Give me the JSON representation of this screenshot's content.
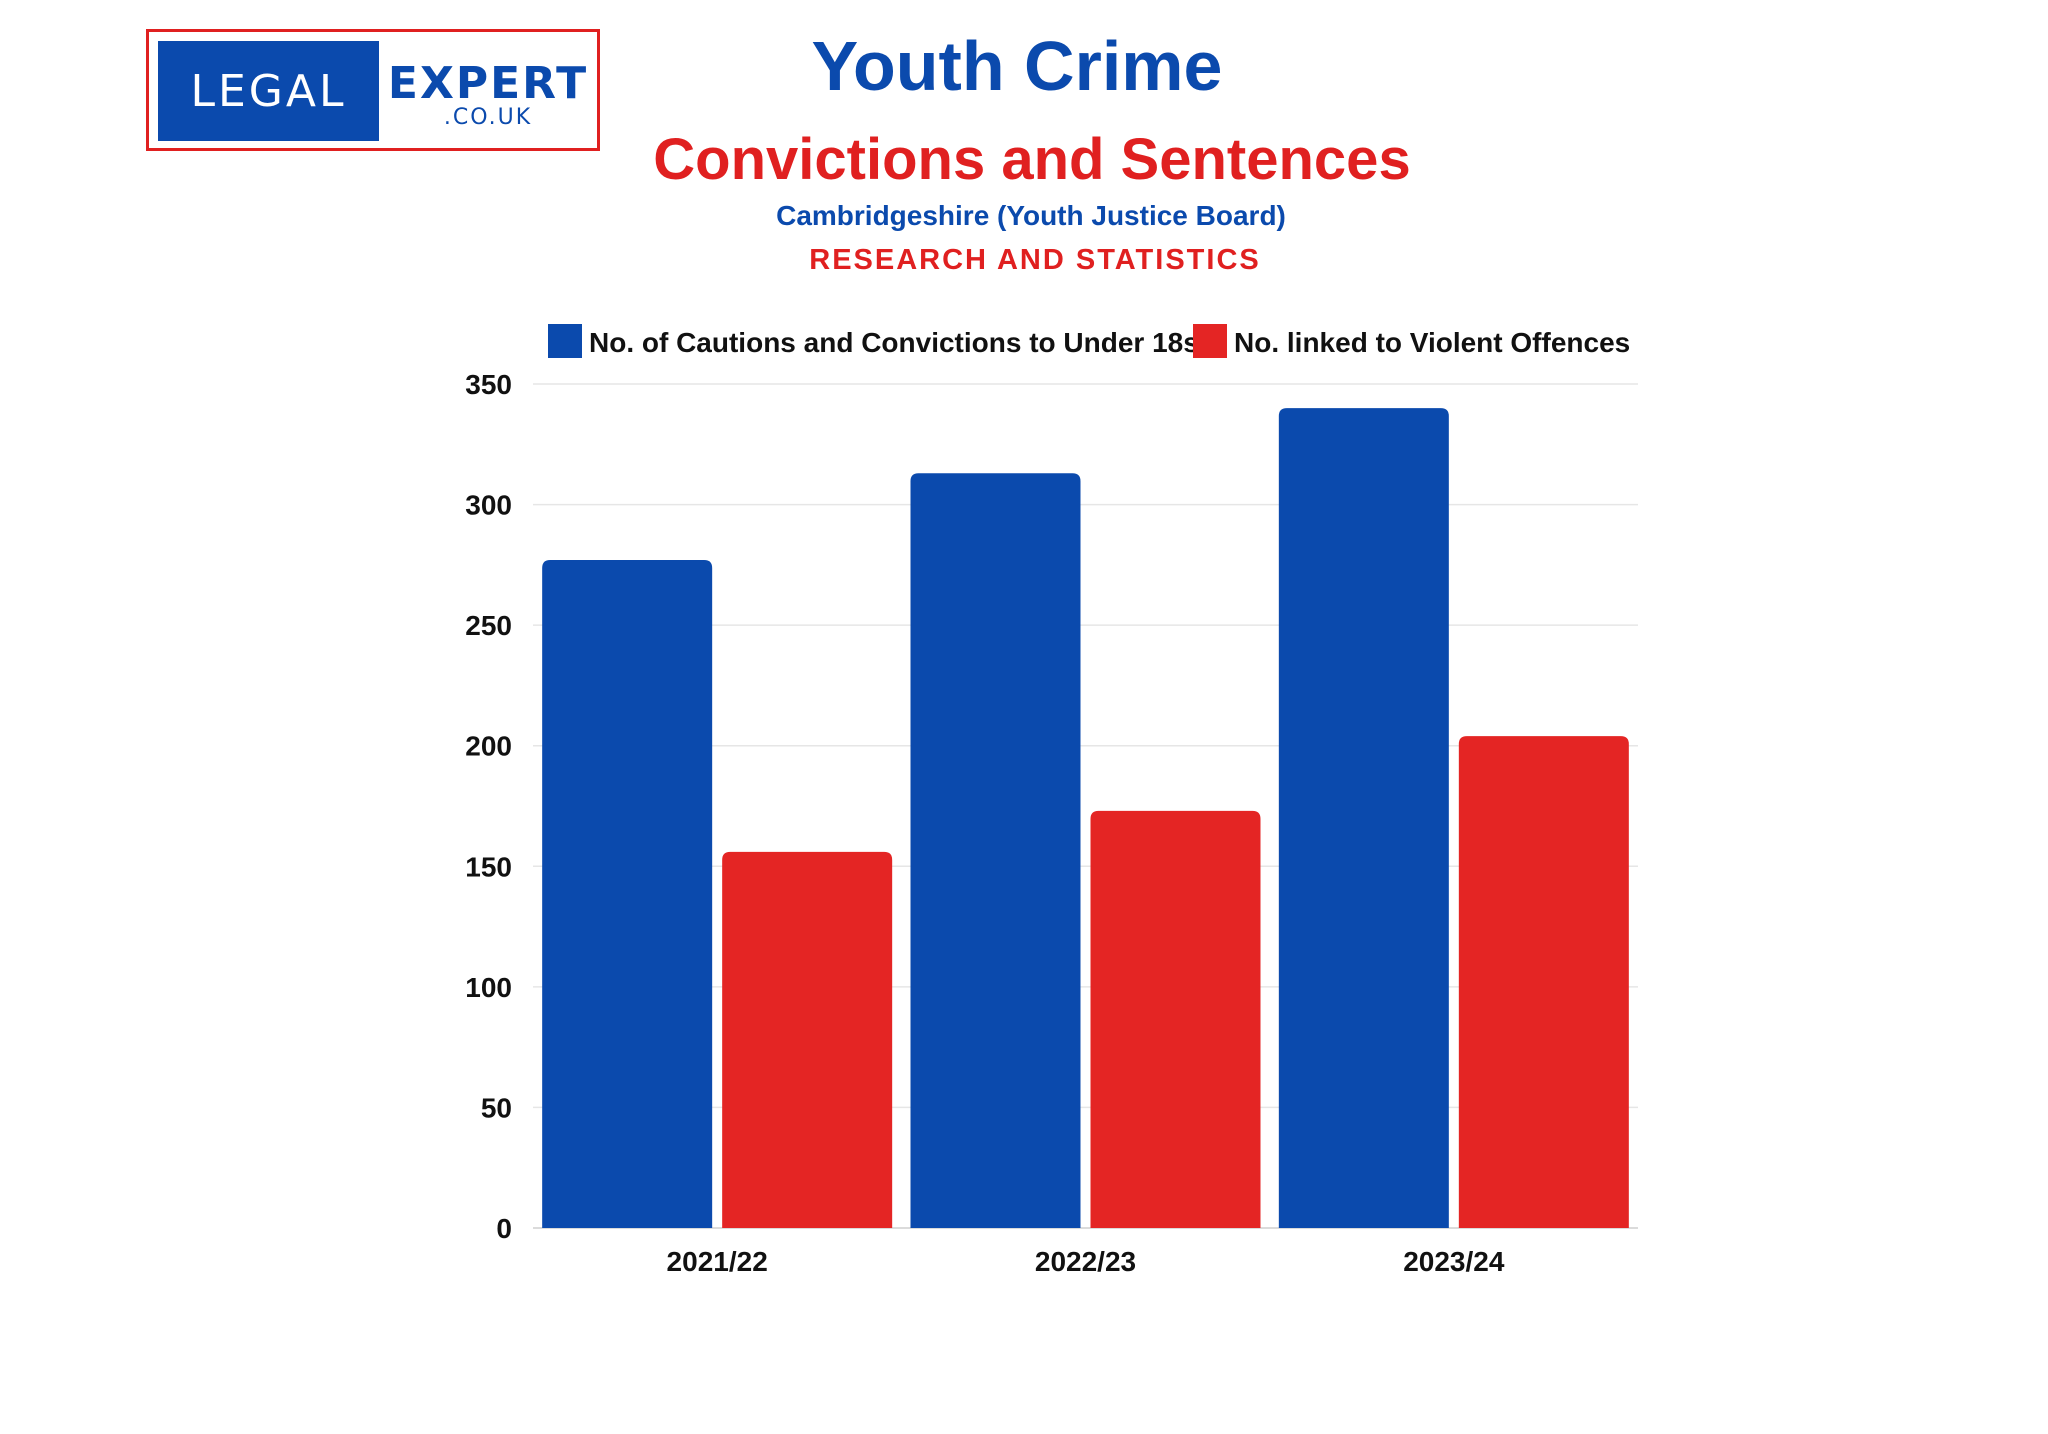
{
  "logo": {
    "left_text": "LEGAL",
    "right_text": "EXPERT",
    "sub_text": ".CO.UK"
  },
  "header": {
    "title": "Youth Crime",
    "subtitle": "Convictions and Sentences",
    "source_line": "Cambridgeshire (Youth Justice Board)",
    "tagline": "RESEARCH AND STATISTICS"
  },
  "colors": {
    "blue": "#0b4aad",
    "red": "#e42524",
    "grid": "#e6e6e6"
  },
  "chart_data": {
    "type": "bar",
    "categories": [
      "2021/22",
      "2022/23",
      "2023/24"
    ],
    "series": [
      {
        "name": "No. of Cautions and Convictions to Under 18s",
        "values": [
          277,
          313,
          340
        ],
        "color": "#0b4aad"
      },
      {
        "name": "No. linked to Violent Offences",
        "values": [
          156,
          173,
          204
        ],
        "color": "#e42524"
      }
    ],
    "ylim": [
      0,
      350
    ],
    "yticks": [
      0,
      50,
      100,
      150,
      200,
      250,
      300,
      350
    ],
    "grid": true,
    "legend_position": "top"
  }
}
